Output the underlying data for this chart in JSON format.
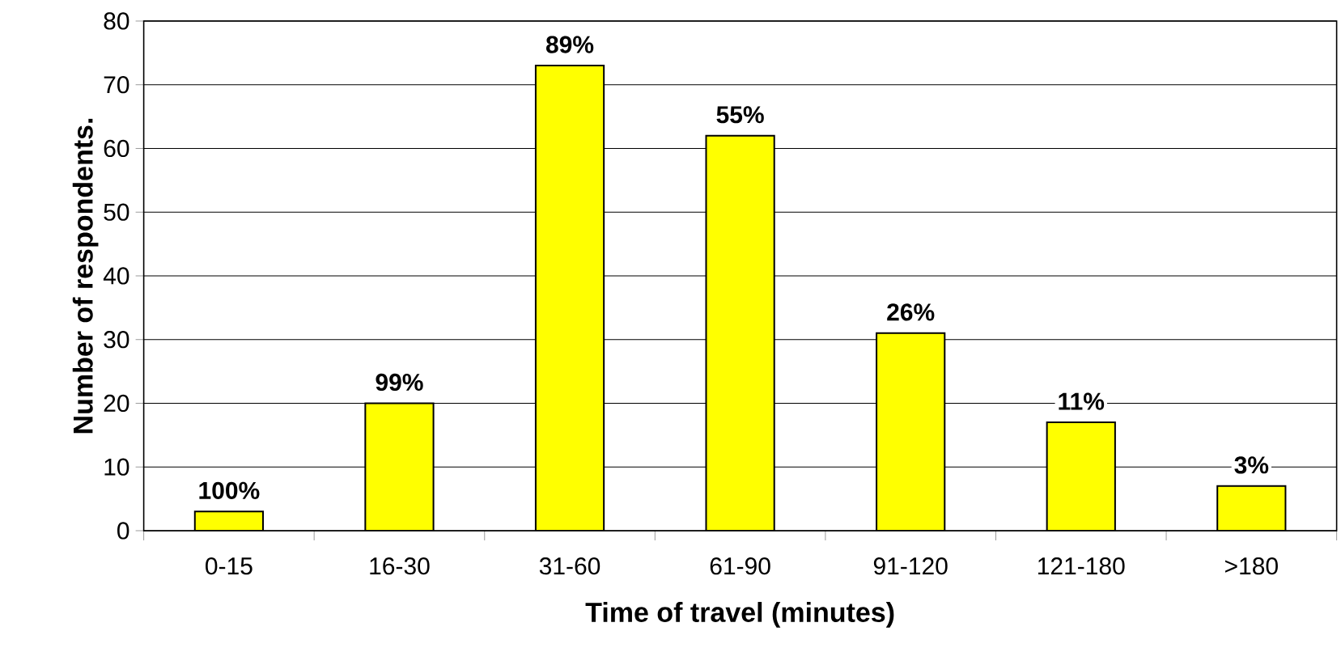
{
  "chart_data": {
    "type": "bar",
    "xlabel": "Time of travel (minutes)",
    "ylabel": "Number of respondents.",
    "categories": [
      "0-15",
      "16-30",
      "31-60",
      "61-90",
      "91-120",
      "121-180",
      ">180"
    ],
    "values": [
      3,
      20,
      73,
      62,
      31,
      17,
      7
    ],
    "annotations": [
      {
        "text": "100%",
        "x": "0-15",
        "y": 3
      },
      {
        "text": "99%",
        "x": "16-30",
        "y": 20
      },
      {
        "text": "89%",
        "x": "31-60",
        "y": 73
      },
      {
        "text": "55%",
        "x": "61-90",
        "y": 62
      },
      {
        "text": "26%",
        "x": "91-120",
        "y": 31
      },
      {
        "text": "11%",
        "x": "121-180",
        "y": 17
      },
      {
        "text": "3%",
        "x": ">180",
        "y": 7
      }
    ],
    "color": "#ffff00",
    "ylim": [
      0,
      80
    ],
    "yticks": [
      0,
      10,
      20,
      30,
      40,
      50,
      60,
      70,
      80
    ],
    "grid": "y"
  }
}
